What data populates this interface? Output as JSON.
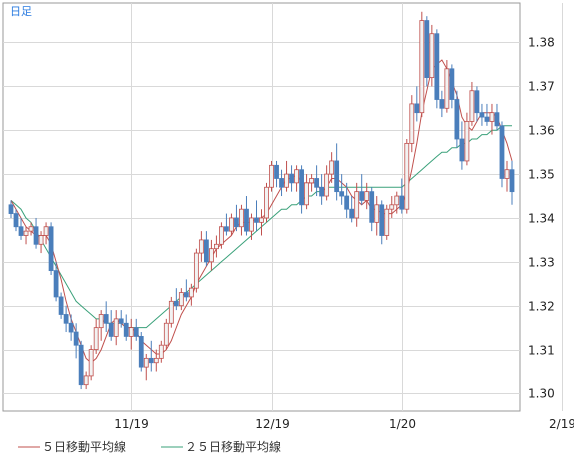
{
  "chart_data": {
    "type": "candlestick",
    "period_label": "日足",
    "ylim": [
      1.296,
      1.389
    ],
    "yticks": [
      1.3,
      1.31,
      1.32,
      1.33,
      1.34,
      1.35,
      1.36,
      1.37,
      1.38
    ],
    "ytick_labels": [
      "1.30",
      "1.31",
      "1.32",
      "1.33",
      "1.34",
      "1.35",
      "1.36",
      "1.37",
      "1.38"
    ],
    "xtick_labels": [
      "11/19",
      "12/19",
      "1/20",
      "2/19"
    ],
    "xtick_index": [
      24,
      52,
      78,
      110
    ],
    "grid": true,
    "legend_position": "bottom-left",
    "colors": {
      "up": "#f2f2f2",
      "up_border": "#c0504d",
      "down": "#4a7ebb",
      "down_border": "#4a7ebb",
      "ma5": "#c0504d",
      "ma25": "#3aa17a",
      "grid": "#d9d9d9",
      "frame": "#999999"
    },
    "series": [
      {
        "name": "５日移動平均線",
        "color": "#c0504d"
      },
      {
        "name": "２５日移動平均線",
        "color": "#3aa17a"
      }
    ],
    "candles": [
      [
        1.343,
        1.344,
        1.34,
        1.341
      ],
      [
        1.341,
        1.342,
        1.337,
        1.338
      ],
      [
        1.338,
        1.34,
        1.335,
        1.336
      ],
      [
        1.336,
        1.338,
        1.334,
        1.337
      ],
      [
        1.337,
        1.339,
        1.336,
        1.338
      ],
      [
        1.338,
        1.34,
        1.333,
        1.334
      ],
      [
        1.334,
        1.337,
        1.332,
        1.336
      ],
      [
        1.336,
        1.339,
        1.334,
        1.338
      ],
      [
        1.338,
        1.339,
        1.327,
        1.328
      ],
      [
        1.328,
        1.33,
        1.321,
        1.322
      ],
      [
        1.322,
        1.323,
        1.317,
        1.318
      ],
      [
        1.318,
        1.32,
        1.314,
        1.316
      ],
      [
        1.316,
        1.318,
        1.312,
        1.314
      ],
      [
        1.314,
        1.316,
        1.308,
        1.311
      ],
      [
        1.311,
        1.312,
        1.301,
        1.302
      ],
      [
        1.302,
        1.305,
        1.301,
        1.304
      ],
      [
        1.304,
        1.311,
        1.303,
        1.31
      ],
      [
        1.31,
        1.317,
        1.309,
        1.315
      ],
      [
        1.315,
        1.319,
        1.312,
        1.318
      ],
      [
        1.318,
        1.321,
        1.314,
        1.316
      ],
      [
        1.316,
        1.319,
        1.312,
        1.313
      ],
      [
        1.313,
        1.319,
        1.311,
        1.317
      ],
      [
        1.317,
        1.319,
        1.315,
        1.316
      ],
      [
        1.316,
        1.318,
        1.312,
        1.313
      ],
      [
        1.313,
        1.317,
        1.31,
        1.315
      ],
      [
        1.315,
        1.317,
        1.312,
        1.313
      ],
      [
        1.313,
        1.314,
        1.305,
        1.306
      ],
      [
        1.306,
        1.309,
        1.303,
        1.308
      ],
      [
        1.308,
        1.312,
        1.305,
        1.307
      ],
      [
        1.307,
        1.31,
        1.305,
        1.308
      ],
      [
        1.308,
        1.312,
        1.307,
        1.311
      ],
      [
        1.311,
        1.317,
        1.31,
        1.316
      ],
      [
        1.316,
        1.322,
        1.315,
        1.321
      ],
      [
        1.321,
        1.324,
        1.319,
        1.32
      ],
      [
        1.32,
        1.324,
        1.319,
        1.323
      ],
      [
        1.323,
        1.326,
        1.321,
        1.322
      ],
      [
        1.322,
        1.325,
        1.32,
        1.324
      ],
      [
        1.324,
        1.333,
        1.323,
        1.332
      ],
      [
        1.332,
        1.337,
        1.33,
        1.335
      ],
      [
        1.335,
        1.337,
        1.329,
        1.33
      ],
      [
        1.33,
        1.335,
        1.328,
        1.333
      ],
      [
        1.333,
        1.336,
        1.331,
        1.334
      ],
      [
        1.334,
        1.339,
        1.333,
        1.338
      ],
      [
        1.338,
        1.341,
        1.336,
        1.337
      ],
      [
        1.337,
        1.341,
        1.336,
        1.34
      ],
      [
        1.34,
        1.343,
        1.337,
        1.338
      ],
      [
        1.338,
        1.343,
        1.336,
        1.342
      ],
      [
        1.342,
        1.345,
        1.336,
        1.337
      ],
      [
        1.337,
        1.341,
        1.335,
        1.34
      ],
      [
        1.34,
        1.344,
        1.337,
        1.339
      ],
      [
        1.339,
        1.342,
        1.336,
        1.34
      ],
      [
        1.34,
        1.348,
        1.339,
        1.347
      ],
      [
        1.347,
        1.353,
        1.346,
        1.352
      ],
      [
        1.352,
        1.353,
        1.347,
        1.349
      ],
      [
        1.349,
        1.351,
        1.345,
        1.347
      ],
      [
        1.347,
        1.353,
        1.346,
        1.35
      ],
      [
        1.35,
        1.352,
        1.346,
        1.348
      ],
      [
        1.348,
        1.352,
        1.346,
        1.351
      ],
      [
        1.351,
        1.352,
        1.341,
        1.343
      ],
      [
        1.343,
        1.35,
        1.342,
        1.348
      ],
      [
        1.348,
        1.35,
        1.346,
        1.349
      ],
      [
        1.349,
        1.352,
        1.345,
        1.347
      ],
      [
        1.347,
        1.35,
        1.343,
        1.345
      ],
      [
        1.345,
        1.352,
        1.344,
        1.35
      ],
      [
        1.35,
        1.355,
        1.348,
        1.353
      ],
      [
        1.353,
        1.357,
        1.344,
        1.346
      ],
      [
        1.346,
        1.35,
        1.343,
        1.345
      ],
      [
        1.345,
        1.348,
        1.34,
        1.342
      ],
      [
        1.342,
        1.345,
        1.339,
        1.34
      ],
      [
        1.34,
        1.348,
        1.338,
        1.346
      ],
      [
        1.346,
        1.35,
        1.343,
        1.344
      ],
      [
        1.344,
        1.348,
        1.342,
        1.346
      ],
      [
        1.346,
        1.347,
        1.337,
        1.339
      ],
      [
        1.339,
        1.345,
        1.336,
        1.343
      ],
      [
        1.343,
        1.344,
        1.334,
        1.336
      ],
      [
        1.336,
        1.343,
        1.335,
        1.342
      ],
      [
        1.342,
        1.345,
        1.34,
        1.343
      ],
      [
        1.343,
        1.346,
        1.341,
        1.345
      ],
      [
        1.345,
        1.349,
        1.341,
        1.342
      ],
      [
        1.342,
        1.358,
        1.341,
        1.357
      ],
      [
        1.357,
        1.368,
        1.355,
        1.366
      ],
      [
        1.366,
        1.37,
        1.362,
        1.364
      ],
      [
        1.364,
        1.387,
        1.363,
        1.385
      ],
      [
        1.385,
        1.386,
        1.37,
        1.372
      ],
      [
        1.372,
        1.384,
        1.37,
        1.382
      ],
      [
        1.382,
        1.383,
        1.365,
        1.367
      ],
      [
        1.367,
        1.369,
        1.363,
        1.365
      ],
      [
        1.365,
        1.376,
        1.364,
        1.374
      ],
      [
        1.374,
        1.375,
        1.365,
        1.367
      ],
      [
        1.367,
        1.369,
        1.356,
        1.358
      ],
      [
        1.358,
        1.362,
        1.351,
        1.353
      ],
      [
        1.353,
        1.364,
        1.352,
        1.362
      ],
      [
        1.362,
        1.371,
        1.361,
        1.369
      ],
      [
        1.369,
        1.37,
        1.362,
        1.364
      ],
      [
        1.364,
        1.366,
        1.361,
        1.363
      ],
      [
        1.363,
        1.366,
        1.361,
        1.362
      ],
      [
        1.362,
        1.366,
        1.359,
        1.364
      ],
      [
        1.364,
        1.366,
        1.36,
        1.361
      ],
      [
        1.361,
        1.362,
        1.347,
        1.349
      ],
      [
        1.349,
        1.353,
        1.346,
        1.351
      ],
      [
        1.351,
        1.353,
        1.343,
        1.346
      ]
    ],
    "ma5": [
      1.344,
      1.342,
      1.34,
      1.338,
      1.337,
      1.336,
      1.336,
      1.336,
      1.334,
      1.33,
      1.326,
      1.321,
      1.317,
      1.314,
      1.311,
      1.308,
      1.307,
      1.308,
      1.31,
      1.313,
      1.316,
      1.317,
      1.316,
      1.315,
      1.315,
      1.314,
      1.312,
      1.311,
      1.31,
      1.309,
      1.309,
      1.31,
      1.312,
      1.315,
      1.318,
      1.32,
      1.322,
      1.325,
      1.327,
      1.329,
      1.331,
      1.333,
      1.334,
      1.335,
      1.336,
      1.338,
      1.339,
      1.339,
      1.339,
      1.34,
      1.34,
      1.341,
      1.343,
      1.345,
      1.347,
      1.349,
      1.349,
      1.35,
      1.348,
      1.348,
      1.348,
      1.348,
      1.346,
      1.347,
      1.349,
      1.349,
      1.348,
      1.347,
      1.345,
      1.344,
      1.343,
      1.344,
      1.342,
      1.342,
      1.341,
      1.341,
      1.341,
      1.342,
      1.343,
      1.346,
      1.351,
      1.357,
      1.364,
      1.369,
      1.374,
      1.375,
      1.376,
      1.374,
      1.371,
      1.368,
      1.363,
      1.361,
      1.36,
      1.362,
      1.364,
      1.364,
      1.364,
      1.363,
      1.36,
      1.357,
      1.353
    ],
    "ma25": [
      1.344,
      1.343,
      1.342,
      1.34,
      1.339,
      1.337,
      1.335,
      1.333,
      1.331,
      1.329,
      1.327,
      1.325,
      1.323,
      1.321,
      1.32,
      1.319,
      1.318,
      1.317,
      1.317,
      1.316,
      1.316,
      1.316,
      1.316,
      1.315,
      1.315,
      1.315,
      1.315,
      1.315,
      1.316,
      1.317,
      1.318,
      1.319,
      1.32,
      1.321,
      1.322,
      1.323,
      1.324,
      1.325,
      1.326,
      1.327,
      1.328,
      1.329,
      1.33,
      1.331,
      1.332,
      1.333,
      1.334,
      1.335,
      1.336,
      1.337,
      1.338,
      1.339,
      1.34,
      1.341,
      1.342,
      1.342,
      1.343,
      1.343,
      1.344,
      1.345,
      1.345,
      1.346,
      1.346,
      1.347,
      1.347,
      1.347,
      1.347,
      1.347,
      1.347,
      1.347,
      1.347,
      1.347,
      1.347,
      1.347,
      1.347,
      1.347,
      1.347,
      1.347,
      1.347,
      1.348,
      1.349,
      1.35,
      1.351,
      1.352,
      1.353,
      1.354,
      1.355,
      1.355,
      1.356,
      1.356,
      1.357,
      1.357,
      1.358,
      1.358,
      1.359,
      1.359,
      1.36,
      1.36,
      1.361,
      1.361,
      1.361
    ]
  }
}
